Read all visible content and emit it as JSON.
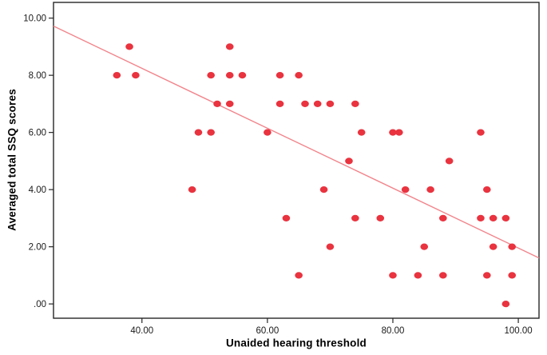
{
  "chart_data": {
    "type": "scatter",
    "title": "",
    "xlabel": "Unaided hearing threshold",
    "ylabel": "Averaged total SSQ scores",
    "xlim": [
      25.9,
      103.3
    ],
    "ylim": [
      -0.5,
      10.55
    ],
    "grid": false,
    "legend": "none",
    "x_ticks": [
      40,
      60,
      80,
      100
    ],
    "x_tick_labels": [
      "40.00",
      "60.00",
      "80.00",
      "100.00"
    ],
    "y_ticks": [
      10,
      8,
      6,
      4,
      2,
      0
    ],
    "y_tick_labels": [
      "10.00",
      "8.00",
      "6.00",
      "4.00",
      "2.00",
      ".00"
    ],
    "points": [
      [
        38,
        9
      ],
      [
        54,
        9
      ],
      [
        36,
        8
      ],
      [
        39,
        8
      ],
      [
        51,
        8
      ],
      [
        54,
        8
      ],
      [
        56,
        8
      ],
      [
        62,
        8
      ],
      [
        65,
        8
      ],
      [
        52,
        7
      ],
      [
        54,
        7
      ],
      [
        62,
        7
      ],
      [
        66,
        7
      ],
      [
        68,
        7
      ],
      [
        70,
        7
      ],
      [
        74,
        7
      ],
      [
        49,
        6
      ],
      [
        51,
        6
      ],
      [
        60,
        6
      ],
      [
        75,
        6
      ],
      [
        80,
        6
      ],
      [
        81,
        6
      ],
      [
        94,
        6
      ],
      [
        73,
        5
      ],
      [
        89,
        5
      ],
      [
        48,
        4
      ],
      [
        69,
        4
      ],
      [
        82,
        4
      ],
      [
        86,
        4
      ],
      [
        95,
        4
      ],
      [
        63,
        3
      ],
      [
        74,
        3
      ],
      [
        78,
        3
      ],
      [
        88,
        3
      ],
      [
        94,
        3
      ],
      [
        96,
        3
      ],
      [
        98,
        3
      ],
      [
        70,
        2
      ],
      [
        85,
        2
      ],
      [
        96,
        2
      ],
      [
        99,
        2
      ],
      [
        65,
        1
      ],
      [
        80,
        1
      ],
      [
        84,
        1
      ],
      [
        88,
        1
      ],
      [
        95,
        1
      ],
      [
        99,
        1
      ],
      [
        98,
        0
      ]
    ],
    "fit_line": {
      "x1": 25.9,
      "y1": 9.72,
      "x2": 103.3,
      "y2": 1.61
    },
    "colors": {
      "point": "#e9333f",
      "line": "#f2848b",
      "axis": "#262626",
      "tick_text": "#1a1a1a"
    }
  }
}
